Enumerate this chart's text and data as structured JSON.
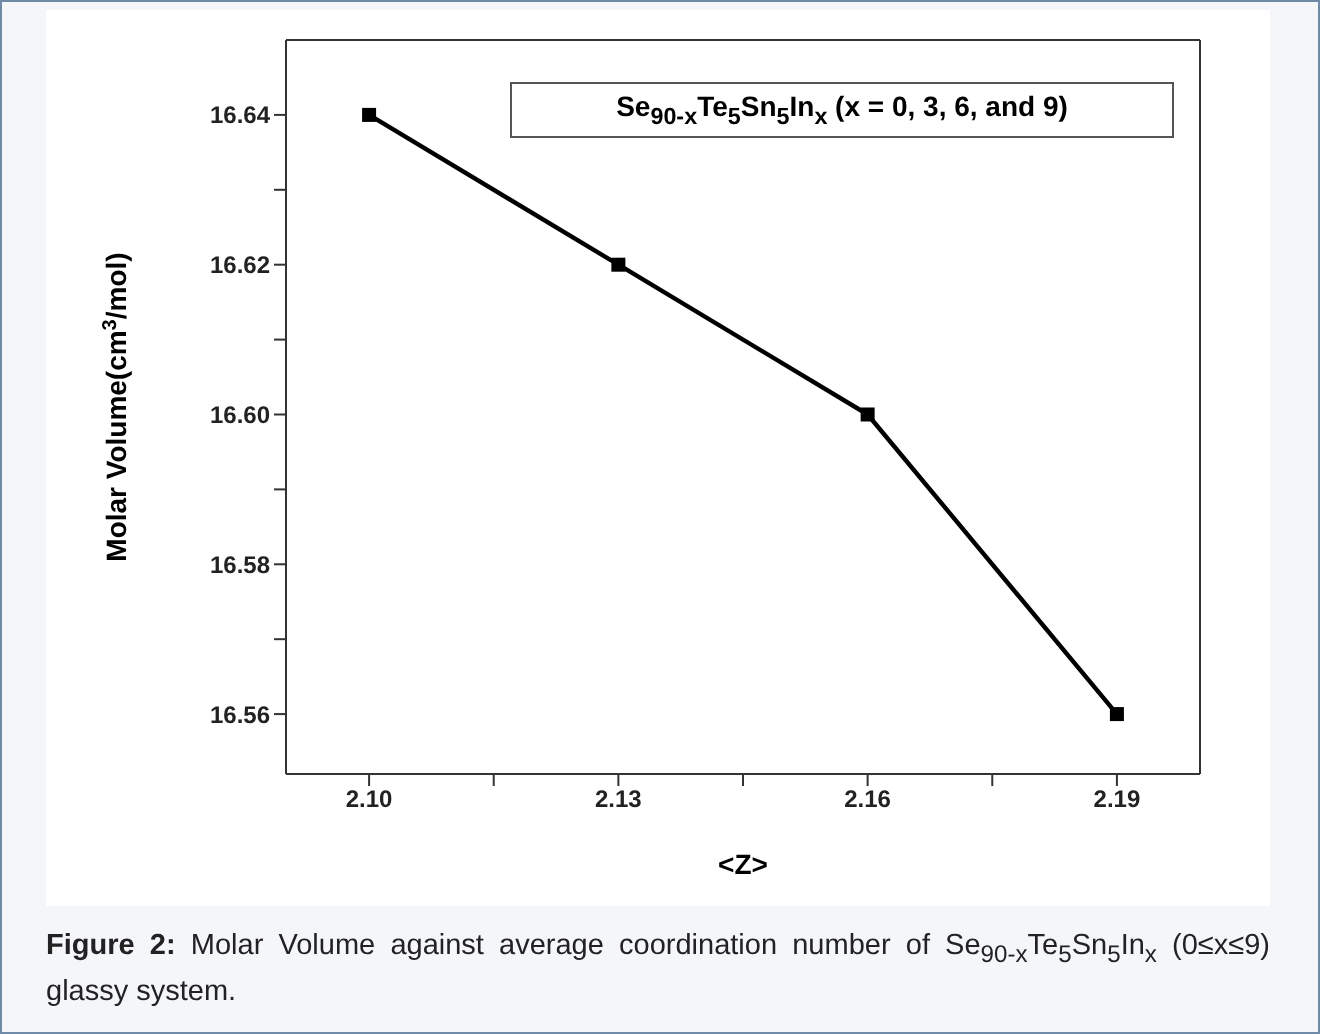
{
  "chart_data": {
    "type": "line",
    "xlabel": "<Z>",
    "ylabel": "Molar Volume(cm$^{3}$/mol)",
    "x": [
      2.1,
      2.13,
      2.16,
      2.19
    ],
    "series": [
      {
        "color": "#000000",
        "values": [
          16.64,
          16.62,
          16.6,
          16.56
        ]
      }
    ],
    "xlim": [
      2.09,
      2.2
    ],
    "xticks": [
      {
        "value": 2.1,
        "label": "2.10"
      },
      {
        "value": 2.115,
        "label": null
      },
      {
        "value": 2.13,
        "label": "2.13"
      },
      {
        "value": 2.145,
        "label": null
      },
      {
        "value": 2.16,
        "label": "2.16"
      },
      {
        "value": 2.175,
        "label": null
      },
      {
        "value": 2.19,
        "label": "2.19"
      }
    ],
    "ylim": [
      16.552,
      16.65
    ],
    "yticks": [
      {
        "value": 16.56,
        "label": "16.56"
      },
      {
        "value": 16.57,
        "label": null
      },
      {
        "value": 16.58,
        "label": "16.58"
      },
      {
        "value": 16.59,
        "label": null
      },
      {
        "value": 16.6,
        "label": "16.60"
      },
      {
        "value": 16.61,
        "label": null
      },
      {
        "value": 16.62,
        "label": "16.62"
      },
      {
        "value": 16.63,
        "label": null
      },
      {
        "value": 16.64,
        "label": "16.64"
      }
    ],
    "grid": false,
    "marker": "square",
    "line_style": "solid",
    "annotations": [
      "Se$_{90-x}$Te$_{5}$Sn$_{5}$In$_{x}$ (x = 0, 3, 6, and 9)",
      "Figure 2: Molar Volume against average coordination number of Se$_{90-x}$Te$_{5}$Sn$_{5}$In$_{x}$ (0≤x≤9) glassy system."
    ]
  }
}
